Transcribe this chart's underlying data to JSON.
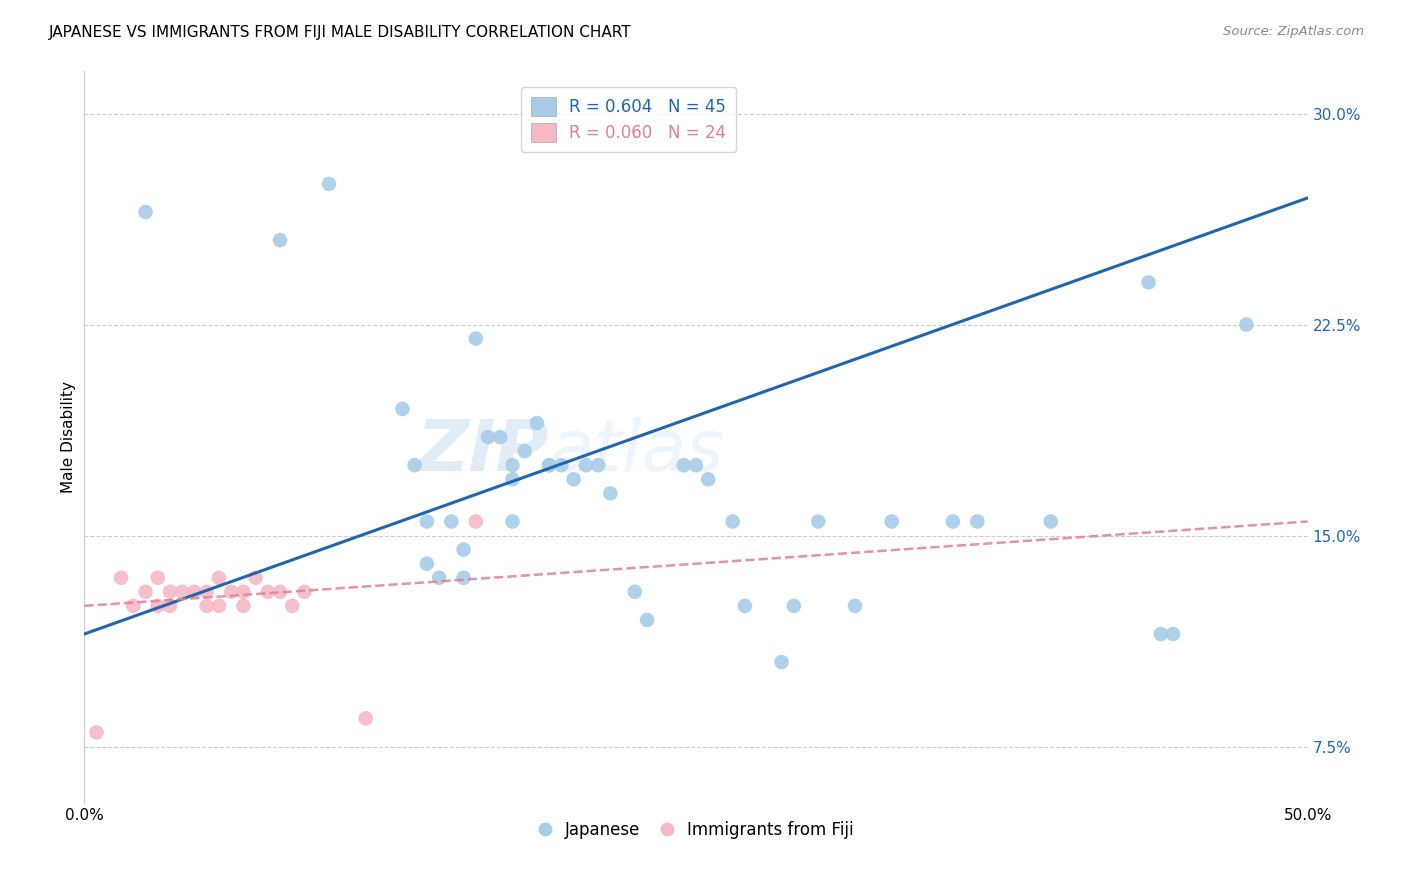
{
  "title": "JAPANESE VS IMMIGRANTS FROM FIJI MALE DISABILITY CORRELATION CHART",
  "source": "Source: ZipAtlas.com",
  "ylabel": "Male Disability",
  "watermark": "ZIPatlas",
  "xlim": [
    0.0,
    0.5
  ],
  "ylim": [
    0.055,
    0.315
  ],
  "xticks": [
    0.0,
    0.1,
    0.2,
    0.3,
    0.4,
    0.5
  ],
  "xtick_labels": [
    "0.0%",
    "",
    "",
    "",
    "",
    "50.0%"
  ],
  "yticks_right": [
    0.075,
    0.15,
    0.225,
    0.3
  ],
  "ytick_labels_right": [
    "7.5%",
    "15.0%",
    "22.5%",
    "30.0%"
  ],
  "legend1_R": "0.604",
  "legend1_N": "45",
  "legend2_R": "0.060",
  "legend2_N": "24",
  "blue_color": "#a8cce8",
  "pink_color": "#f5b8c4",
  "line_blue": "#2166ac",
  "line_pink": "#e08090",
  "japanese_x": [
    0.025,
    0.08,
    0.1,
    0.13,
    0.135,
    0.14,
    0.14,
    0.145,
    0.15,
    0.155,
    0.155,
    0.16,
    0.165,
    0.17,
    0.175,
    0.175,
    0.175,
    0.18,
    0.185,
    0.19,
    0.19,
    0.195,
    0.2,
    0.205,
    0.21,
    0.215,
    0.225,
    0.23,
    0.245,
    0.25,
    0.255,
    0.265,
    0.27,
    0.285,
    0.29,
    0.3,
    0.315,
    0.33,
    0.355,
    0.365,
    0.395,
    0.435,
    0.44,
    0.445,
    0.475
  ],
  "japanese_y": [
    0.265,
    0.255,
    0.275,
    0.195,
    0.175,
    0.155,
    0.14,
    0.135,
    0.155,
    0.145,
    0.135,
    0.22,
    0.185,
    0.185,
    0.175,
    0.17,
    0.155,
    0.18,
    0.19,
    0.175,
    0.175,
    0.175,
    0.17,
    0.175,
    0.175,
    0.165,
    0.13,
    0.12,
    0.175,
    0.175,
    0.17,
    0.155,
    0.125,
    0.105,
    0.125,
    0.155,
    0.125,
    0.155,
    0.155,
    0.155,
    0.155,
    0.24,
    0.115,
    0.115,
    0.225
  ],
  "fiji_x": [
    0.005,
    0.015,
    0.02,
    0.025,
    0.03,
    0.03,
    0.035,
    0.035,
    0.04,
    0.045,
    0.05,
    0.05,
    0.055,
    0.055,
    0.06,
    0.065,
    0.065,
    0.07,
    0.075,
    0.08,
    0.085,
    0.09,
    0.115,
    0.16
  ],
  "fiji_y": [
    0.08,
    0.135,
    0.125,
    0.13,
    0.125,
    0.135,
    0.13,
    0.125,
    0.13,
    0.13,
    0.125,
    0.13,
    0.125,
    0.135,
    0.13,
    0.13,
    0.125,
    0.135,
    0.13,
    0.13,
    0.125,
    0.13,
    0.085,
    0.155
  ],
  "blue_line_x": [
    0.0,
    0.5
  ],
  "blue_line_y": [
    0.115,
    0.27
  ],
  "pink_line_x": [
    0.0,
    0.5
  ],
  "pink_line_y": [
    0.125,
    0.155
  ],
  "background_color": "#ffffff",
  "grid_color": "#cccccc"
}
